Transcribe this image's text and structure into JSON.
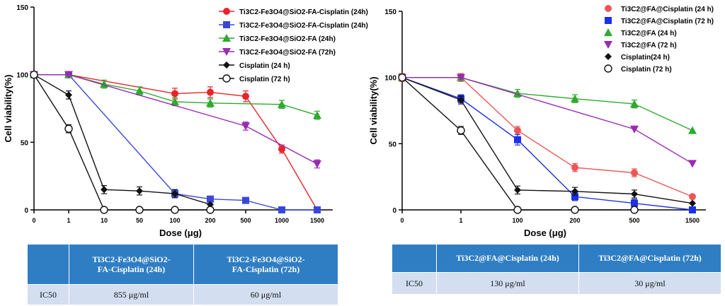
{
  "chart_data": [
    {
      "type": "line",
      "xlabel": "Dose (μg)",
      "ylabel": "Cell viability(%)",
      "categories": [
        "0",
        "1",
        "10",
        "50",
        "100",
        "200",
        "500",
        "1000",
        "1500"
      ],
      "ylim": [
        0,
        150
      ],
      "yticks": [
        "0",
        "50",
        "100",
        "150"
      ],
      "series": [
        {
          "name": "Ti3C2-Fe3O4@SiO2-FA-Cisplatin (24h)",
          "color": "#e8242a",
          "marker": "circle",
          "points": [
            [
              0,
              100
            ],
            [
              1,
              100
            ],
            [
              4,
              86
            ],
            [
              5,
              87
            ],
            [
              6,
              84
            ],
            [
              7,
              45
            ],
            [
              8,
              0
            ]
          ],
          "errors": [
            [
              4,
              4
            ],
            [
              5,
              4
            ],
            [
              6,
              4
            ],
            [
              7,
              3
            ]
          ]
        },
        {
          "name": "Ti3C2-Fe3O4@SiO2-FA-Cisplatin (24h)",
          "color": "#3a48d8",
          "marker": "square",
          "points": [
            [
              0,
              100
            ],
            [
              1,
              100
            ],
            [
              4,
              12
            ],
            [
              5,
              8
            ],
            [
              6,
              7
            ],
            [
              7,
              0
            ],
            [
              8,
              0
            ]
          ],
          "errors": [
            [
              4,
              3
            ],
            [
              5,
              2
            ]
          ]
        },
        {
          "name": "Ti3C2-Fe3O4@SiO2-FA (24h)",
          "color": "#2eaa2e",
          "marker": "triangle",
          "points": [
            [
              0,
              100
            ],
            [
              1,
              100
            ],
            [
              2,
              93
            ],
            [
              3,
              88
            ],
            [
              4,
              80
            ],
            [
              5,
              79
            ],
            [
              7,
              78
            ],
            [
              8,
              70
            ]
          ],
          "errors": [
            [
              2,
              3
            ],
            [
              3,
              3
            ],
            [
              4,
              3
            ],
            [
              5,
              3
            ],
            [
              7,
              3
            ],
            [
              8,
              3
            ]
          ]
        },
        {
          "name": "Ti3C2-Fe3O4@SiO2-FA (72h)",
          "color": "#9a2ab3",
          "marker": "tri-down",
          "points": [
            [
              0,
              100
            ],
            [
              1,
              100
            ],
            [
              6,
              62
            ],
            [
              8,
              34
            ]
          ],
          "errors": [
            [
              6,
              3
            ],
            [
              8,
              3
            ]
          ]
        },
        {
          "name": "Cisplatin (24 h)",
          "color": "#111111",
          "marker": "diamond",
          "points": [
            [
              0,
              100
            ],
            [
              1,
              85
            ],
            [
              2,
              15
            ],
            [
              3,
              14
            ],
            [
              4,
              12
            ],
            [
              5,
              4
            ]
          ],
          "errors": [
            [
              1,
              3
            ],
            [
              2,
              3
            ],
            [
              3,
              3
            ],
            [
              4,
              3
            ]
          ]
        },
        {
          "name": "Cisplatin (72 h)",
          "color": "#111111",
          "marker": "open-circle",
          "points": [
            [
              0,
              100
            ],
            [
              1,
              60
            ],
            [
              2,
              0
            ],
            [
              3,
              0
            ],
            [
              4,
              0
            ],
            [
              5,
              0
            ]
          ],
          "errors": [
            [
              1,
              3
            ]
          ]
        }
      ]
    },
    {
      "type": "line",
      "xlabel": "Dose (μg)",
      "ylabel": "Cell viability(%)",
      "categories": [
        "0",
        "1",
        "100",
        "200",
        "500",
        "1500"
      ],
      "ylim": [
        0,
        150
      ],
      "yticks": [
        "0",
        "50",
        "100",
        "150"
      ],
      "series": [
        {
          "name": "Ti3C2@FA@Cisplatin (24 h)",
          "color": "#f05555",
          "marker": "circle",
          "points": [
            [
              0,
              100
            ],
            [
              1,
              100
            ],
            [
              2,
              60
            ],
            [
              3,
              32
            ],
            [
              4,
              28
            ],
            [
              5,
              10
            ]
          ],
          "errors": [
            [
              0,
              3
            ],
            [
              1,
              3
            ],
            [
              2,
              3
            ],
            [
              3,
              3
            ],
            [
              4,
              3
            ]
          ]
        },
        {
          "name": "Ti3C2@FA@Cisplatin (72 h)",
          "color": "#1d2fe8",
          "marker": "square",
          "points": [
            [
              0,
              100
            ],
            [
              1,
              84
            ],
            [
              2,
              53
            ],
            [
              3,
              10
            ],
            [
              4,
              5
            ],
            [
              5,
              0
            ]
          ],
          "errors": [
            [
              1,
              3
            ],
            [
              2,
              4
            ],
            [
              3,
              3
            ],
            [
              4,
              3
            ]
          ]
        },
        {
          "name": "Ti3C2@FA (24 h)",
          "color": "#2eaa2e",
          "marker": "triangle",
          "points": [
            [
              0,
              100
            ],
            [
              1,
              100
            ],
            [
              2,
              88
            ],
            [
              3,
              84
            ],
            [
              4,
              80
            ],
            [
              5,
              60
            ]
          ],
          "errors": [
            [
              2,
              3
            ],
            [
              3,
              3
            ],
            [
              4,
              3
            ]
          ]
        },
        {
          "name": "Ti3C2@FA (72 h)",
          "color": "#9a2ab3",
          "marker": "tri-down",
          "points": [
            [
              0,
              100
            ],
            [
              1,
              100
            ],
            [
              4,
              61
            ],
            [
              5,
              35
            ]
          ],
          "errors": []
        },
        {
          "name": "Cisplatin(24 h)",
          "color": "#111111",
          "marker": "diamond",
          "points": [
            [
              0,
              100
            ],
            [
              1,
              83
            ],
            [
              2,
              15
            ],
            [
              3,
              14
            ],
            [
              4,
              12
            ],
            [
              5,
              5
            ]
          ],
          "errors": [
            [
              1,
              3
            ],
            [
              2,
              3
            ],
            [
              3,
              3
            ],
            [
              4,
              3
            ]
          ]
        },
        {
          "name": "Cisplatin (72 h)",
          "color": "#111111",
          "marker": "open-circle",
          "points": [
            [
              0,
              100
            ],
            [
              1,
              60
            ],
            [
              2,
              0
            ],
            [
              3,
              0
            ],
            [
              4,
              0
            ]
          ],
          "errors": [
            [
              1,
              3
            ]
          ]
        }
      ]
    }
  ],
  "tables": [
    {
      "col1": "Ti3C2-Fe3O4@SiO2-FA-Cisplatin (24h)",
      "col2": "Ti3C2-Fe3O4@SiO2-FA-Cisplatin (72h)",
      "row_label": "IC50",
      "val1": "855 μg/ml",
      "val2": "60 μg/ml"
    },
    {
      "col1": "Ti3C2@FA@Cisplatin (24h)",
      "col2": "Ti3C2@FA@Cisplatin (72h)",
      "row_label": "IC50",
      "val1": "130 μg/ml",
      "val2": "30 μg/ml"
    }
  ]
}
